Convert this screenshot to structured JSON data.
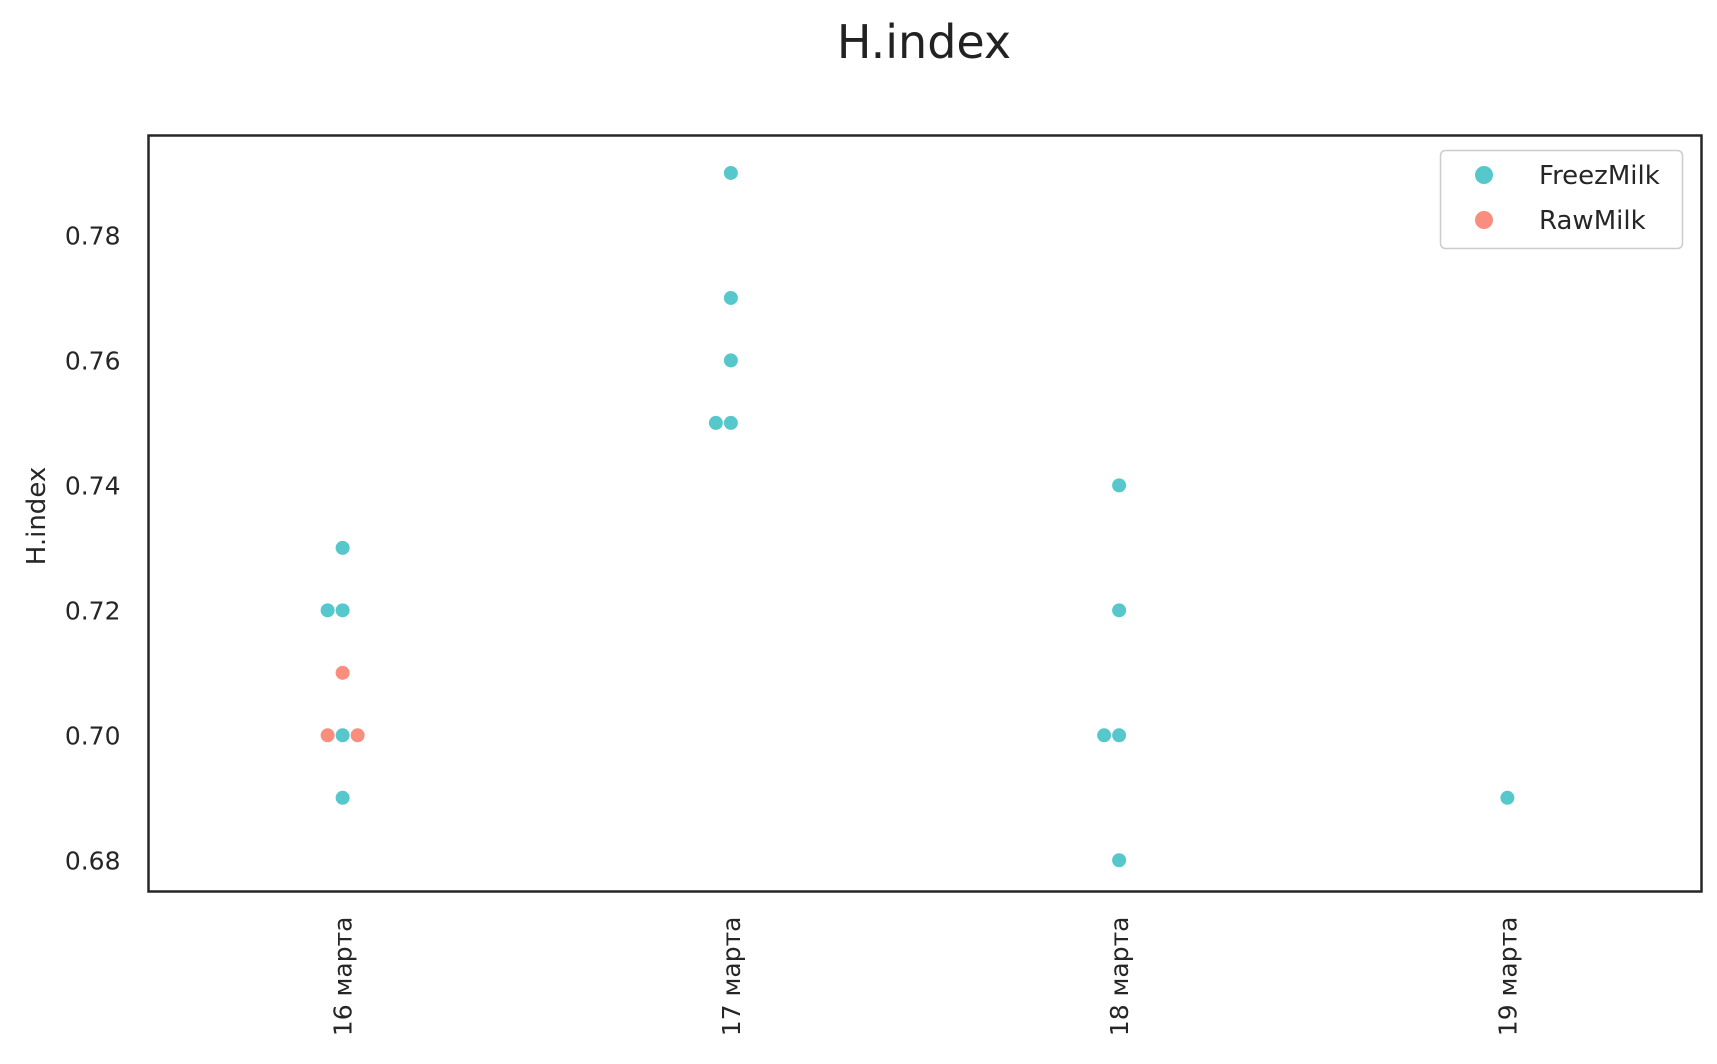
{
  "chart_data": {
    "type": "scatter",
    "title": "H.index",
    "xlabel": "",
    "ylabel": "H.index",
    "categories": [
      "16 марта",
      "17 марта",
      "18 марта",
      "19 марта"
    ],
    "yticks": [
      "0.68",
      "0.70",
      "0.72",
      "0.74",
      "0.76",
      "0.78"
    ],
    "ylim": [
      0.675,
      0.796
    ],
    "grid": false,
    "legend_position": "top-right",
    "series": [
      {
        "name": "FreezMilk",
        "color": "#56c8cc",
        "points": [
          {
            "x": "16 марта",
            "y": 0.73
          },
          {
            "x": "16 марта",
            "y": 0.72
          },
          {
            "x": "16 марта",
            "y": 0.72
          },
          {
            "x": "16 марта",
            "y": 0.7
          },
          {
            "x": "16 марта",
            "y": 0.69
          },
          {
            "x": "17 марта",
            "y": 0.79
          },
          {
            "x": "17 марта",
            "y": 0.77
          },
          {
            "x": "17 марта",
            "y": 0.76
          },
          {
            "x": "17 марта",
            "y": 0.75
          },
          {
            "x": "17 марта",
            "y": 0.75
          },
          {
            "x": "18 марта",
            "y": 0.74
          },
          {
            "x": "18 марта",
            "y": 0.72
          },
          {
            "x": "18 марта",
            "y": 0.7
          },
          {
            "x": "18 марта",
            "y": 0.7
          },
          {
            "x": "18 марта",
            "y": 0.68
          },
          {
            "x": "19 марта",
            "y": 0.69
          }
        ]
      },
      {
        "name": "RawMilk",
        "color": "#f98e7e",
        "points": [
          {
            "x": "16 марта",
            "y": 0.71
          },
          {
            "x": "16 марта",
            "y": 0.7
          },
          {
            "x": "16 марта",
            "y": 0.7
          }
        ]
      }
    ]
  }
}
